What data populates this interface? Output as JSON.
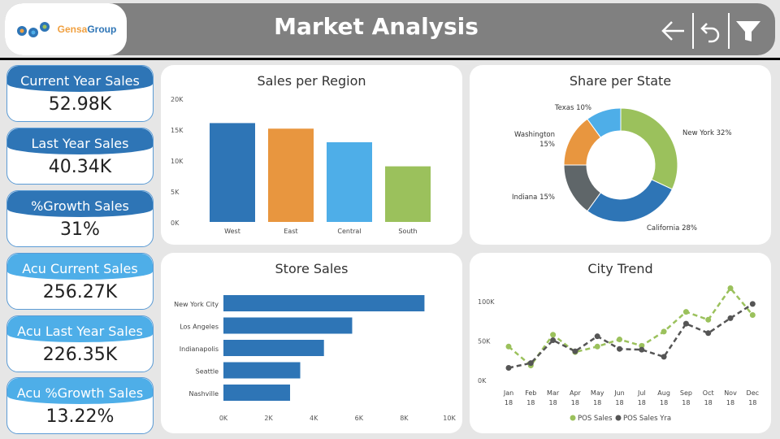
{
  "header": {
    "logo": {
      "part1": "Gensa",
      "part2": "Group"
    },
    "title": "Market Analysis",
    "icons": [
      "back-arrow-icon",
      "undo-icon",
      "filter-icon"
    ]
  },
  "kpis": [
    {
      "label": "Current Year Sales",
      "value": "52.98K",
      "style": "dark"
    },
    {
      "label": "Last Year Sales",
      "value": "40.34K",
      "style": "dark"
    },
    {
      "label": "%Growth Sales",
      "value": "31%",
      "style": "dark"
    },
    {
      "label": "Acu Current Sales",
      "value": "256.27K",
      "style": "light"
    },
    {
      "label": "Acu Last Year Sales",
      "value": "226.35K",
      "style": "light"
    },
    {
      "label": "Acu %Growth Sales",
      "value": "13.22%",
      "style": "light"
    }
  ],
  "cards": {
    "region": {
      "title": "Sales per Region"
    },
    "state": {
      "title": "Share per State"
    },
    "store": {
      "title": "Store Sales"
    },
    "trend": {
      "title": "City Trend"
    }
  },
  "colors": {
    "header": "#808080",
    "dark_blue": "#2e75b6",
    "light_blue": "#4eaee8",
    "orange": "#e8963f",
    "green": "#9bc15c",
    "gray": "#5f6669",
    "line_gray": "#555555"
  },
  "chart_data": [
    {
      "type": "bar",
      "title": "Sales per Region",
      "categories": [
        "West",
        "East",
        "Central",
        "South"
      ],
      "values": [
        16000,
        15100,
        12900,
        9000
      ],
      "colors": [
        "#2e75b6",
        "#e8963f",
        "#4eaee8",
        "#9bc15c"
      ],
      "ylim": [
        0,
        20000
      ],
      "yticks": [
        "0K",
        "5K",
        "10K",
        "15K",
        "20K"
      ],
      "grid": false
    },
    {
      "type": "pie",
      "title": "Share per State",
      "donut": true,
      "labels": [
        "New York",
        "California",
        "Indiana",
        "Washington",
        "Texas"
      ],
      "values": [
        32,
        28,
        15,
        15,
        10
      ],
      "display": [
        "New York 32%",
        "California 28%",
        "Indiana 15%",
        "Washington 15%",
        "Texas 10%"
      ],
      "colors": [
        "#9bc15c",
        "#2e75b6",
        "#5f6669",
        "#e8963f",
        "#4eaee8"
      ]
    },
    {
      "type": "bar",
      "orientation": "horizontal",
      "title": "Store Sales",
      "categories": [
        "New York City",
        "Los Angeles",
        "Indianapolis",
        "Seattle",
        "Nashville"
      ],
      "values": [
        8900,
        5700,
        4450,
        3400,
        2950
      ],
      "xlim": [
        0,
        10000
      ],
      "xticks": [
        "0K",
        "2K",
        "4K",
        "6K",
        "8K",
        "10K"
      ]
    },
    {
      "type": "line",
      "title": "City Trend",
      "categories": [
        "Jan 18",
        "Feb 18",
        "Mar 18",
        "Apr 18",
        "May 18",
        "Jun 18",
        "Jul 18",
        "Aug 18",
        "Sep 18",
        "Oct 18",
        "Nov 18",
        "Dec 18"
      ],
      "series": [
        {
          "name": "POS Sales",
          "color": "#9bc15c",
          "values": [
            43000,
            19000,
            58000,
            36000,
            43000,
            52000,
            44000,
            62000,
            87000,
            77000,
            117000,
            83000
          ]
        },
        {
          "name": "POS Sales Yra",
          "color": "#555555",
          "values": [
            16000,
            22000,
            51000,
            37000,
            56000,
            40000,
            39000,
            30000,
            72000,
            60000,
            79000,
            97000
          ]
        }
      ],
      "ylim": [
        0,
        120000
      ],
      "yticks": [
        "0K",
        "50K",
        "100K"
      ],
      "legend_position": "bottom"
    }
  ]
}
